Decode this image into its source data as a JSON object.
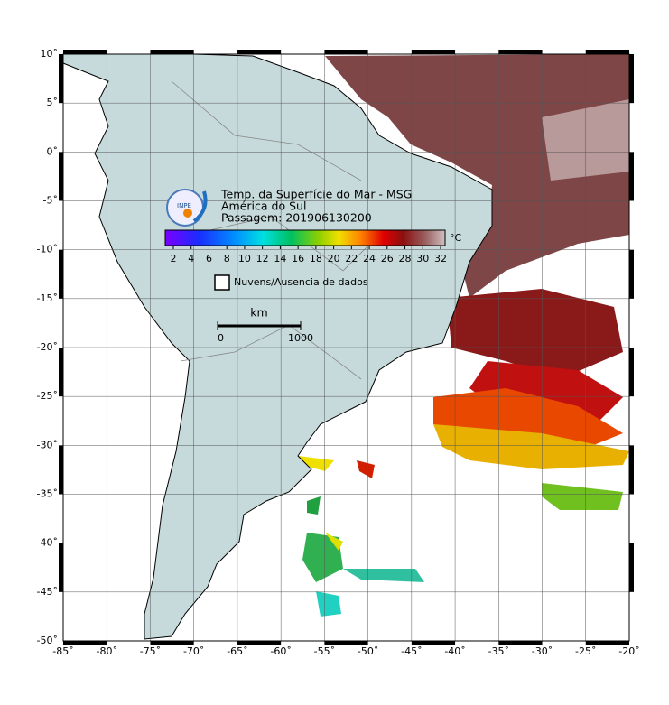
{
  "map": {
    "title": "Temp. da Superfície do Mar - MSG",
    "subtitle": "América do Sul",
    "pass": "Passagem: 201906130200",
    "logo_text": "INPE",
    "colorbar": {
      "unit": "°C",
      "ticks": [
        2,
        4,
        6,
        8,
        10,
        12,
        14,
        16,
        18,
        20,
        22,
        24,
        26,
        28,
        30,
        32
      ]
    },
    "legend": "Nuvens/Ausencia de dados",
    "scale": {
      "unit": "km",
      "ticks": [
        0,
        1000
      ]
    },
    "lon_ticks": [
      {
        "value": -85,
        "label": "-85˚"
      },
      {
        "value": -80,
        "label": "-80˚"
      },
      {
        "value": -75,
        "label": "-75˚"
      },
      {
        "value": -70,
        "label": "-70˚"
      },
      {
        "value": -65,
        "label": "-65˚"
      },
      {
        "value": -60,
        "label": "-60˚"
      },
      {
        "value": -55,
        "label": "-55˚"
      },
      {
        "value": -50,
        "label": "-50˚"
      },
      {
        "value": -45,
        "label": "-45˚"
      },
      {
        "value": -40,
        "label": "-40˚"
      },
      {
        "value": -35,
        "label": "-35˚"
      },
      {
        "value": -30,
        "label": "-30˚"
      },
      {
        "value": -25,
        "label": "-25˚"
      },
      {
        "value": -20,
        "label": "-20˚"
      }
    ],
    "lat_ticks": [
      {
        "value": 10,
        "label": "10˚"
      },
      {
        "value": 5,
        "label": "5˚"
      },
      {
        "value": 0,
        "label": "0˚"
      },
      {
        "value": -5,
        "label": "-5˚"
      },
      {
        "value": -10,
        "label": "-10˚"
      },
      {
        "value": -15,
        "label": "-15˚"
      },
      {
        "value": -20,
        "label": "-20˚"
      },
      {
        "value": -25,
        "label": "-25˚"
      },
      {
        "value": -30,
        "label": "-30˚"
      },
      {
        "value": -35,
        "label": "-35˚"
      },
      {
        "value": -40,
        "label": "-40˚"
      },
      {
        "value": -45,
        "label": "-45˚"
      },
      {
        "value": -50,
        "label": "-50˚"
      }
    ]
  }
}
